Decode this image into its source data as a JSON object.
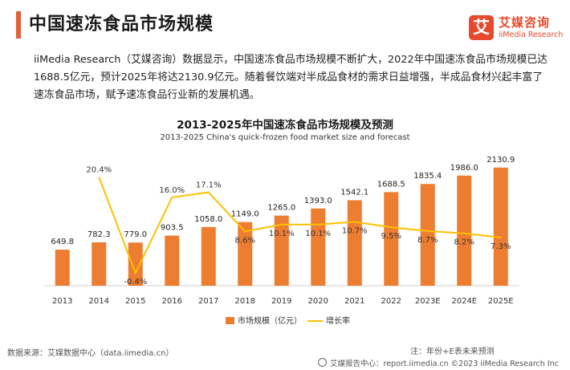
{
  "header": {
    "title": "中国速冻食品市场规模"
  },
  "logo": {
    "badge": "艾",
    "name_cn": "艾媒咨询",
    "name_en": "iiMedia Research"
  },
  "intro": "iiMedia Research（艾媒咨询）数据显示，中国速冻食品市场规模不断扩大，2022年中国速冻食品市场规模已达1688.5亿元，预计2025年将达2130.9亿元。随着餐饮端对半成品食材的需求日益增强，半成品食材兴起丰富了速冻食品市场，赋予速冻食品行业新的发展机遇。",
  "chart_data": {
    "type": "bar",
    "title": "2013-2025年中国速冻食品市场规模及预测",
    "subtitle": "2013-2025 China's quick-frozen food market size and forecast",
    "categories": [
      "2013",
      "2014",
      "2015",
      "2016",
      "2017",
      "2018",
      "2019",
      "2020",
      "2021",
      "2022",
      "2023E",
      "2024E",
      "2025E"
    ],
    "series": [
      {
        "name": "市场规模（亿元）",
        "type": "bar",
        "axis": "left",
        "values": [
          649.8,
          782.3,
          779.0,
          903.5,
          1058.0,
          1149.0,
          1265.0,
          1393.0,
          1542.1,
          1688.5,
          1835.4,
          1986.0,
          2130.9
        ],
        "labels": [
          "649.8",
          "782.3",
          "779.0",
          "903.5",
          "1058.0",
          "1149.0",
          "1265.0",
          "1393.0",
          "1542.1",
          "1688.5",
          "1835.4",
          "1986.0",
          "2130.9"
        ],
        "color": "#ed7d31"
      },
      {
        "name": "增长率",
        "type": "line",
        "axis": "right",
        "values": [
          null,
          20.4,
          -0.4,
          16.0,
          17.1,
          8.6,
          10.1,
          10.1,
          10.7,
          9.5,
          8.7,
          8.2,
          7.3
        ],
        "labels": [
          "",
          "20.4%",
          "-0.4%",
          "16.0%",
          "17.1%",
          "8.6%",
          "10.1%",
          "10.1%",
          "10.7%",
          "9.5%",
          "8.7%",
          "8.2%",
          "7.3%"
        ],
        "color": "#ffc000"
      }
    ],
    "ylim": [
      0,
      2200
    ],
    "y2lim": [
      -3,
      24
    ],
    "grid": false,
    "legend": "bottom"
  },
  "footer": {
    "source": "数据来源：艾媒数据中心（data.iimedia.cn）",
    "note": "注：年份+E表未来预测",
    "report": "艾媒报告中心：report.iimedia.cn  ©2023  iiMedia Research  Inc"
  }
}
